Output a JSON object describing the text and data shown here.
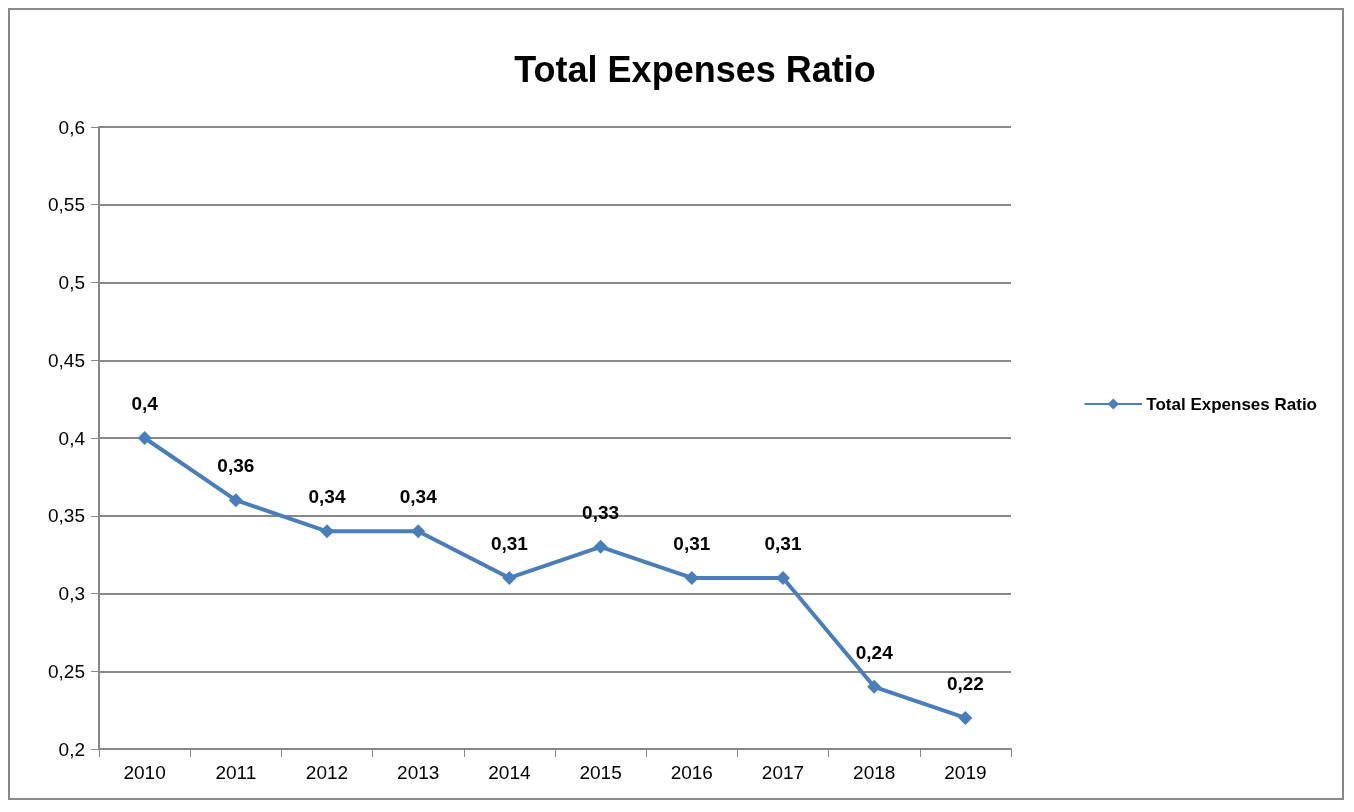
{
  "chart_data": {
    "type": "line",
    "title": "Total Expenses Ratio",
    "categories": [
      "2010",
      "2011",
      "2012",
      "2013",
      "2014",
      "2015",
      "2016",
      "2017",
      "2018",
      "2019"
    ],
    "series": [
      {
        "name": "Total Expenses Ratio",
        "color": "#4a7ebb",
        "values": [
          0.4,
          0.36,
          0.34,
          0.34,
          0.31,
          0.33,
          0.31,
          0.31,
          0.24,
          0.22
        ],
        "value_labels": [
          "0,4",
          "0,36",
          "0,34",
          "0,34",
          "0,31",
          "0,33",
          "0,31",
          "0,31",
          "0,24",
          "0,22"
        ]
      }
    ],
    "ylim": [
      0.2,
      0.6
    ],
    "yticks": [
      {
        "value": 0.2,
        "label": "0,2"
      },
      {
        "value": 0.25,
        "label": "0,25"
      },
      {
        "value": 0.3,
        "label": "0,3"
      },
      {
        "value": 0.35,
        "label": "0,35"
      },
      {
        "value": 0.4,
        "label": "0,4"
      },
      {
        "value": 0.45,
        "label": "0,45"
      },
      {
        "value": 0.5,
        "label": "0,5"
      },
      {
        "value": 0.55,
        "label": "0,55"
      },
      {
        "value": 0.6,
        "label": "0,6"
      }
    ],
    "grid": "y",
    "legend": "right",
    "marker": "diamond",
    "line_style": "solid"
  }
}
